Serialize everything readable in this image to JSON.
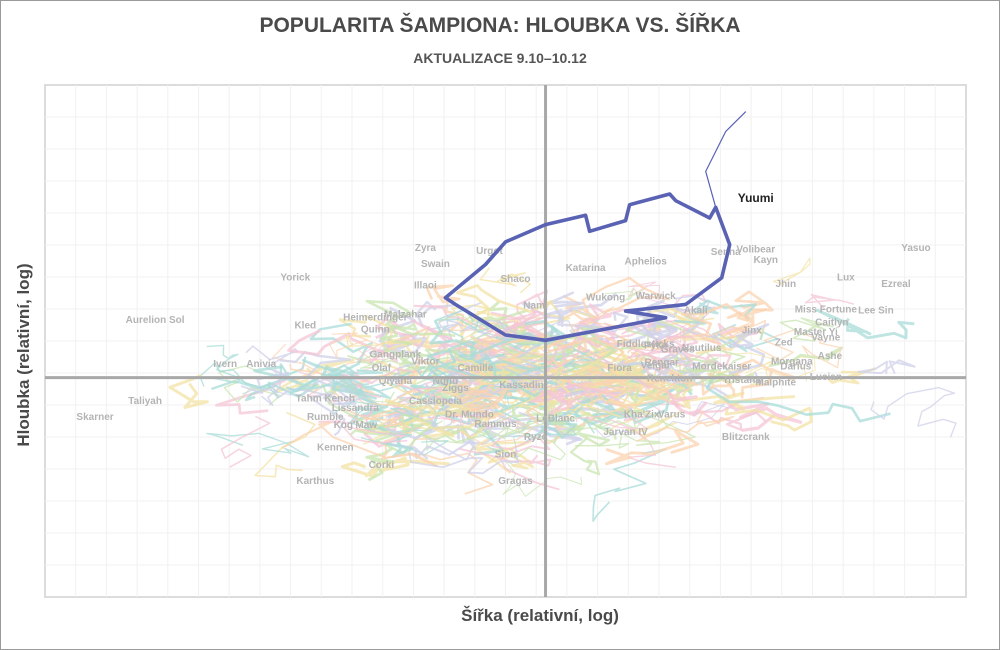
{
  "chart_data": {
    "type": "line",
    "title": "POPULARITA ŠAMPIONA: HLOUBKA VS. ŠÍŘKA",
    "subtitle": "AKTUALIZACE 9.10–10.12",
    "xlabel": "Šířka (relativní, log)",
    "ylabel": "Hloubka (relativní, log)",
    "xlim": [
      -2.5,
      2.1
    ],
    "ylim": [
      -1.65,
      2.2
    ],
    "grid": true,
    "highlight": {
      "name": "Yuumi",
      "color": "#5a62b3",
      "points": [
        [
          -0.5,
          0.6
        ],
        [
          -0.3,
          0.85
        ],
        [
          -0.2,
          1.02
        ],
        [
          0.0,
          1.15
        ],
        [
          0.2,
          1.22
        ],
        [
          0.22,
          1.1
        ],
        [
          0.4,
          1.18
        ],
        [
          0.42,
          1.3
        ],
        [
          0.62,
          1.38
        ],
        [
          0.65,
          1.33
        ],
        [
          0.82,
          1.2
        ],
        [
          0.85,
          1.28
        ],
        [
          0.92,
          1.0
        ],
        [
          0.88,
          0.75
        ],
        [
          0.7,
          0.55
        ],
        [
          0.4,
          0.5
        ],
        [
          0.6,
          0.45
        ],
        [
          0.0,
          0.28
        ],
        [
          -0.2,
          0.32
        ],
        [
          -0.45,
          0.55
        ],
        [
          -0.5,
          0.6
        ]
      ],
      "tail": [
        [
          0.85,
          1.28
        ],
        [
          0.8,
          1.55
        ],
        [
          0.9,
          1.85
        ],
        [
          1.0,
          2.0
        ]
      ]
    },
    "labels": [
      {
        "name": "Zyra",
        "x": -0.6,
        "y": 0.95
      },
      {
        "name": "Swain",
        "x": -0.55,
        "y": 0.83
      },
      {
        "name": "Illaoi",
        "x": -0.6,
        "y": 0.67
      },
      {
        "name": "Yorick",
        "x": -1.25,
        "y": 0.73
      },
      {
        "name": "Kled",
        "x": -1.2,
        "y": 0.37
      },
      {
        "name": "Aurelion Sol",
        "x": -1.95,
        "y": 0.41
      },
      {
        "name": "Heimerdinger",
        "x": -0.85,
        "y": 0.43
      },
      {
        "name": "Quinn",
        "x": -0.85,
        "y": 0.34
      },
      {
        "name": "Malzahar",
        "x": -0.7,
        "y": 0.45
      },
      {
        "name": "Urgot",
        "x": -0.28,
        "y": 0.93
      },
      {
        "name": "Shaco",
        "x": -0.15,
        "y": 0.72
      },
      {
        "name": "Nami",
        "x": -0.05,
        "y": 0.52
      },
      {
        "name": "Katarina",
        "x": 0.2,
        "y": 0.8
      },
      {
        "name": "Aphelios",
        "x": 0.5,
        "y": 0.85
      },
      {
        "name": "Senna",
        "x": 0.9,
        "y": 0.92
      },
      {
        "name": "Volibear",
        "x": 1.05,
        "y": 0.94
      },
      {
        "name": "Kayn",
        "x": 1.1,
        "y": 0.86
      },
      {
        "name": "Yasuo",
        "x": 1.85,
        "y": 0.95
      },
      {
        "name": "Lux",
        "x": 1.5,
        "y": 0.73
      },
      {
        "name": "Ezreal",
        "x": 1.75,
        "y": 0.68
      },
      {
        "name": "Jhin",
        "x": 1.2,
        "y": 0.68
      },
      {
        "name": "Lee Sin",
        "x": 1.65,
        "y": 0.48
      },
      {
        "name": "Miss Fortune",
        "x": 1.4,
        "y": 0.49
      },
      {
        "name": "Caitlyn",
        "x": 1.43,
        "y": 0.39
      },
      {
        "name": "Master Yi",
        "x": 1.35,
        "y": 0.32
      },
      {
        "name": "Vayne",
        "x": 1.4,
        "y": 0.28
      },
      {
        "name": "Akali",
        "x": 0.75,
        "y": 0.48
      },
      {
        "name": "Warwick",
        "x": 0.55,
        "y": 0.59
      },
      {
        "name": "Wukong",
        "x": 0.3,
        "y": 0.58
      },
      {
        "name": "Blitzcrank",
        "x": 1.0,
        "y": -0.47
      },
      {
        "name": "Jarvan IV",
        "x": 0.4,
        "y": -0.43
      },
      {
        "name": "Varus",
        "x": 0.63,
        "y": -0.3
      },
      {
        "name": "Kha'Zix",
        "x": 0.48,
        "y": -0.3
      },
      {
        "name": "Tristana",
        "x": 0.98,
        "y": -0.04
      },
      {
        "name": "Malphite",
        "x": 1.15,
        "y": -0.06
      },
      {
        "name": "Lucian",
        "x": 1.4,
        "y": -0.02
      },
      {
        "name": "Darius",
        "x": 1.25,
        "y": 0.06
      },
      {
        "name": "Morgana",
        "x": 1.23,
        "y": 0.1
      },
      {
        "name": "Ashe",
        "x": 1.42,
        "y": 0.14
      },
      {
        "name": "Zed",
        "x": 1.19,
        "y": 0.24
      },
      {
        "name": "Jinx",
        "x": 1.03,
        "y": 0.33
      },
      {
        "name": "Graves",
        "x": 0.66,
        "y": 0.19
      },
      {
        "name": "Nautilus",
        "x": 0.78,
        "y": 0.2
      },
      {
        "name": "Mordekaiser",
        "x": 0.88,
        "y": 0.06
      },
      {
        "name": "Rengar",
        "x": 0.58,
        "y": 0.09
      },
      {
        "name": "Veigar",
        "x": 0.55,
        "y": 0.07
      },
      {
        "name": "Fiora",
        "x": 0.37,
        "y": 0.05
      },
      {
        "name": "Renekton",
        "x": 0.62,
        "y": -0.03
      },
      {
        "name": "Pyke",
        "x": 0.55,
        "y": 0.22
      },
      {
        "name": "Fiddlesticks",
        "x": 0.5,
        "y": 0.23
      },
      {
        "name": "Camille",
        "x": -0.35,
        "y": 0.05
      },
      {
        "name": "Viktor",
        "x": -0.6,
        "y": 0.1
      },
      {
        "name": "Gangplank",
        "x": -0.75,
        "y": 0.15
      },
      {
        "name": "Olaf",
        "x": -0.82,
        "y": 0.05
      },
      {
        "name": "Qiyana",
        "x": -0.75,
        "y": -0.05
      },
      {
        "name": "Nunu",
        "x": -0.5,
        "y": -0.05
      },
      {
        "name": "Ziggs",
        "x": -0.45,
        "y": -0.1
      },
      {
        "name": "Cassiopeia",
        "x": -0.55,
        "y": -0.2
      },
      {
        "name": "Dr. Mundo",
        "x": -0.38,
        "y": -0.3
      },
      {
        "name": "Rammus",
        "x": -0.25,
        "y": -0.37
      },
      {
        "name": "Ryze",
        "x": -0.05,
        "y": -0.47
      },
      {
        "name": "Sion",
        "x": -0.2,
        "y": -0.6
      },
      {
        "name": "Gragas",
        "x": -0.15,
        "y": -0.8
      },
      {
        "name": "Corki",
        "x": -0.82,
        "y": -0.68
      },
      {
        "name": "Kennen",
        "x": -1.05,
        "y": -0.55
      },
      {
        "name": "Karthus",
        "x": -1.15,
        "y": -0.8
      },
      {
        "name": "Kog'Maw",
        "x": -0.95,
        "y": -0.38
      },
      {
        "name": "Rumble",
        "x": -1.1,
        "y": -0.32
      },
      {
        "name": "Lissandra",
        "x": -0.95,
        "y": -0.25
      },
      {
        "name": "Tahm Kench",
        "x": -1.1,
        "y": -0.18
      },
      {
        "name": "Taliyah",
        "x": -2.0,
        "y": -0.2
      },
      {
        "name": "Skarner",
        "x": -2.25,
        "y": -0.32
      },
      {
        "name": "Ivern",
        "x": -1.6,
        "y": 0.08
      },
      {
        "name": "Anivia",
        "x": -1.42,
        "y": 0.08
      },
      {
        "name": "LeBlanc",
        "x": 0.05,
        "y": -0.33
      },
      {
        "name": "Kassadin",
        "x": -0.12,
        "y": -0.08
      }
    ]
  }
}
